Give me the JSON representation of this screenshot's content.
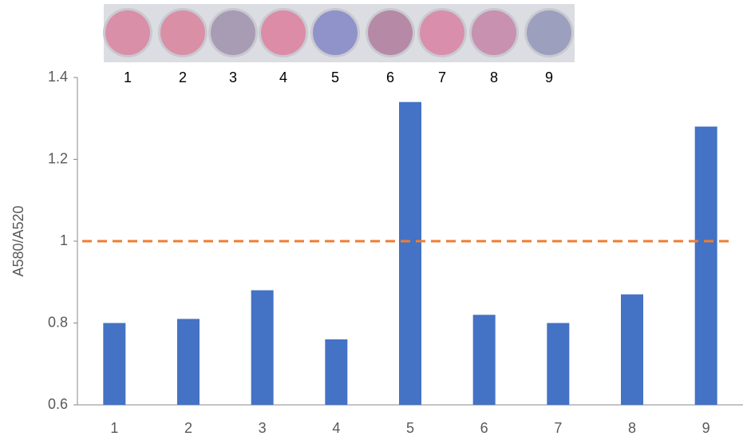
{
  "chart_data": {
    "type": "bar",
    "y_label": "A580/A520",
    "categories": [
      "1",
      "2",
      "3",
      "4",
      "5",
      "6",
      "7",
      "8",
      "9"
    ],
    "values": [
      0.8,
      0.81,
      0.88,
      0.76,
      1.34,
      0.82,
      0.8,
      0.87,
      1.28
    ],
    "color": "#4472c4",
    "ylim": [
      0.6,
      1.4
    ],
    "yticks": [
      0.6,
      0.8,
      1,
      1.2,
      1.4
    ],
    "grid": false,
    "threshold": 1,
    "threshold_color": "#ed7d31",
    "well_colors": [
      "#d98fa8",
      "#d990a6",
      "#a89cb4",
      "#dc8ca6",
      "#8f93c9",
      "#b68aa6",
      "#d98fab",
      "#c891b0",
      "#9c9fbe"
    ]
  }
}
